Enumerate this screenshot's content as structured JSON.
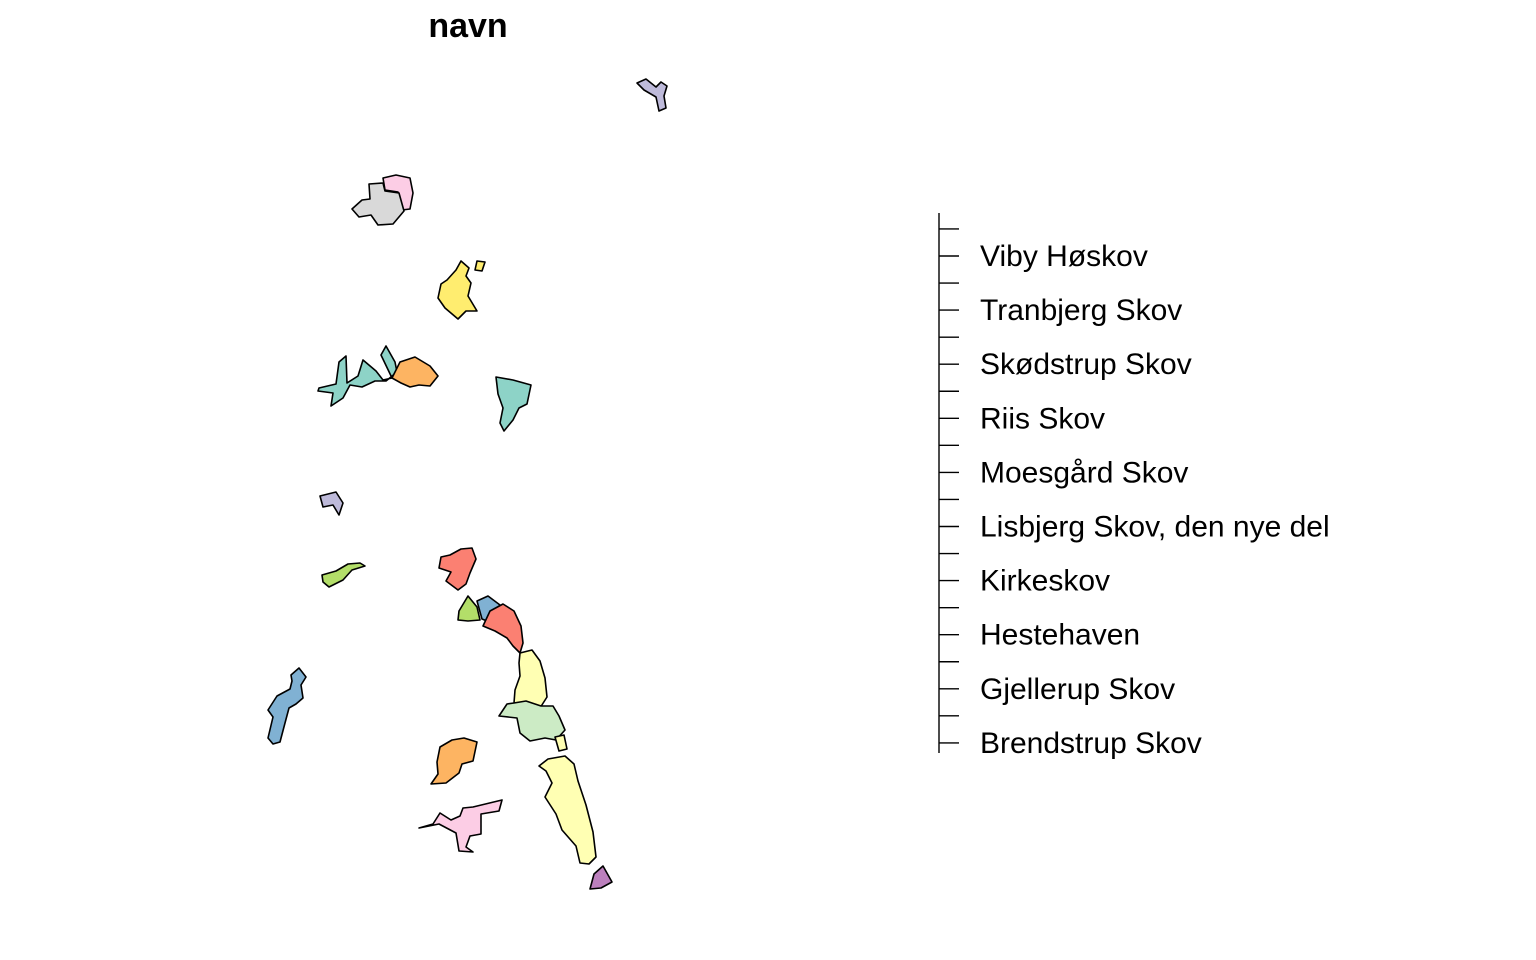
{
  "title": "navn",
  "palette": {
    "purple_grey": "#bebada",
    "pink": "#fccde5",
    "grey": "#d9d9d9",
    "yellow": "#ffed6f",
    "teal": "#8dd3c7",
    "orange": "#fdb462",
    "red": "#fb8072",
    "green": "#b3de69",
    "blue": "#80b1d3",
    "light_yellow": "#ffffb3",
    "light_green": "#ccebc5",
    "violet": "#bc80bd",
    "legend_strip": "#ffffff"
  },
  "legend": {
    "items": [
      "Viby Høskov",
      "Tranbjerg Skov",
      "Skødstrup Skov",
      "Riis Skov",
      "Moesgård Skov",
      "Lisbjerg Skov, den nye del",
      "Kirkeskov",
      "Hestehaven",
      "Gjellerup Skov",
      "Brendstrup Skov"
    ]
  }
}
